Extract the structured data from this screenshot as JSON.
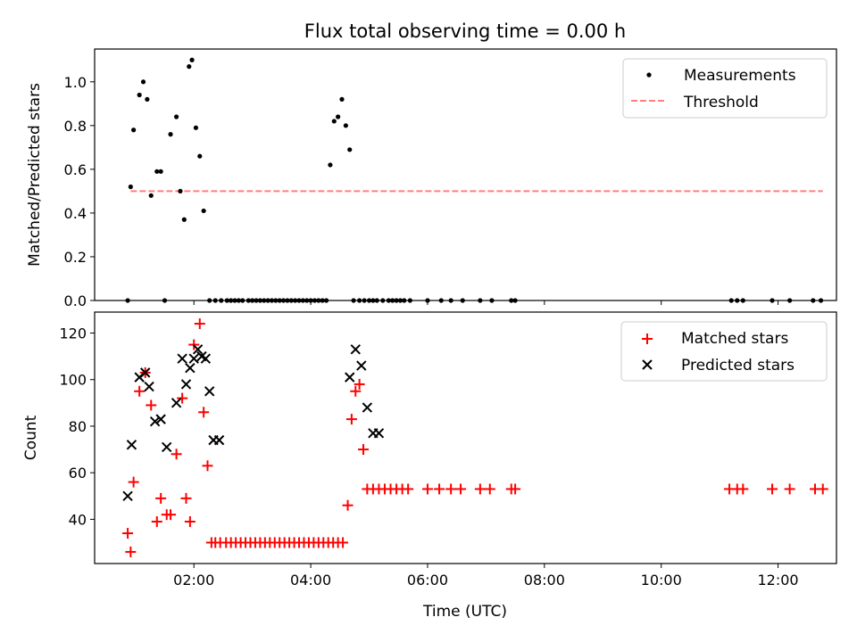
{
  "chart_data": [
    {
      "type": "scatter",
      "title": "Flux total observing time = 0.00 h",
      "xlabel": "",
      "ylabel": "Matched/Predicted stars",
      "xlim": [
        "00:18",
        "13:00"
      ],
      "ylim": [
        0,
        1.15
      ],
      "yticks": [
        "0.0",
        "0.2",
        "0.4",
        "0.6",
        "0.8",
        "1.0"
      ],
      "yticks_values": [
        0,
        0.2,
        0.4,
        0.6,
        0.8,
        1.0
      ],
      "grid": false,
      "legend_position": "top-right",
      "colors": {
        "measurements": "#000000",
        "threshold": "#ff7f7f"
      },
      "series": [
        {
          "name": "Measurements",
          "kind": "scatter",
          "x": [
            "00:52",
            "00:55",
            "00:58",
            "01:04",
            "01:08",
            "01:12",
            "01:16",
            "01:22",
            "01:26",
            "01:30",
            "01:36",
            "01:42",
            "01:46",
            "01:50",
            "01:55",
            "01:58",
            "02:02",
            "02:06",
            "02:10",
            "02:16",
            "02:22",
            "02:28",
            "02:34",
            "02:38",
            "02:42",
            "02:46",
            "02:50",
            "02:56",
            "03:00",
            "03:04",
            "03:08",
            "03:12",
            "03:16",
            "03:20",
            "03:24",
            "03:28",
            "03:32",
            "03:36",
            "03:40",
            "03:44",
            "03:48",
            "03:52",
            "03:56",
            "04:00",
            "04:04",
            "04:08",
            "04:12",
            "04:16",
            "04:20",
            "04:24",
            "04:28",
            "04:32",
            "04:36",
            "04:40",
            "04:44",
            "04:50",
            "04:55",
            "05:00",
            "05:04",
            "05:08",
            "05:14",
            "05:20",
            "05:24",
            "05:28",
            "05:32",
            "05:36",
            "05:42",
            "06:00",
            "06:14",
            "06:24",
            "06:36",
            "06:54",
            "07:06",
            "07:26",
            "07:30",
            "11:12",
            "11:18",
            "11:24",
            "11:54",
            "12:12",
            "12:36",
            "12:44"
          ],
          "y": [
            0,
            0.52,
            0.78,
            0.94,
            1.0,
            0.92,
            0.48,
            0.59,
            0.59,
            0,
            0.76,
            0.84,
            0.5,
            0.37,
            1.07,
            1.1,
            0.79,
            0.66,
            0.41,
            0,
            0,
            0,
            0,
            0,
            0,
            0,
            0,
            0,
            0,
            0,
            0,
            0,
            0,
            0,
            0,
            0,
            0,
            0,
            0,
            0,
            0,
            0,
            0,
            0,
            0,
            0,
            0,
            0,
            0.62,
            0.82,
            0.84,
            0.92,
            0.8,
            0.69,
            0,
            0,
            0,
            0,
            0,
            0,
            0,
            0,
            0,
            0,
            0,
            0,
            0,
            0,
            0,
            0,
            0,
            0,
            0,
            0,
            0,
            0,
            0,
            0,
            0,
            0,
            0,
            0
          ]
        },
        {
          "name": "Threshold",
          "kind": "dashed-line",
          "x": [
            "00:55",
            "12:46"
          ],
          "y": [
            0.5,
            0.5
          ]
        }
      ]
    },
    {
      "type": "scatter",
      "title": "",
      "xlabel": "Time (UTC)",
      "ylabel": "Count",
      "xlim": [
        "00:18",
        "13:00"
      ],
      "xticks": [
        "02:00",
        "04:00",
        "06:00",
        "08:00",
        "10:00",
        "12:00"
      ],
      "ylim": [
        21,
        129
      ],
      "yticks": [
        "40",
        "60",
        "80",
        "100",
        "120"
      ],
      "yticks_values": [
        40,
        60,
        80,
        100,
        120
      ],
      "grid": false,
      "legend_position": "top-right",
      "colors": {
        "matched": "#ff0000",
        "predicted": "#000000"
      },
      "series": [
        {
          "name": "Matched stars",
          "kind": "plus",
          "x": [
            "00:52",
            "00:55",
            "00:58",
            "01:04",
            "01:10",
            "01:16",
            "01:22",
            "01:26",
            "01:32",
            "01:36",
            "01:42",
            "01:48",
            "01:52",
            "01:56",
            "02:00",
            "02:06",
            "02:10",
            "02:14",
            "02:18",
            "02:22",
            "02:27",
            "02:33",
            "02:38",
            "02:43",
            "02:48",
            "02:53",
            "02:58",
            "03:03",
            "03:08",
            "03:13",
            "03:18",
            "03:23",
            "03:28",
            "03:33",
            "03:38",
            "03:43",
            "03:48",
            "03:53",
            "03:58",
            "04:03",
            "04:08",
            "04:13",
            "04:18",
            "04:23",
            "04:28",
            "04:33",
            "04:38",
            "04:42",
            "04:46",
            "04:50",
            "04:54",
            "04:58",
            "05:04",
            "05:10",
            "05:16",
            "05:22",
            "05:28",
            "05:34",
            "05:40",
            "06:00",
            "06:12",
            "06:24",
            "06:34",
            "06:54",
            "07:04",
            "07:26",
            "07:30",
            "11:10",
            "11:18",
            "11:24",
            "11:54",
            "12:12",
            "12:38",
            "12:46"
          ],
          "y": [
            34,
            26,
            56,
            95,
            103,
            89,
            39,
            49,
            42,
            42,
            68,
            92,
            49,
            39,
            115,
            124,
            86,
            63,
            30,
            30,
            30,
            30,
            30,
            30,
            30,
            30,
            30,
            30,
            30,
            30,
            30,
            30,
            30,
            30,
            30,
            30,
            30,
            30,
            30,
            30,
            30,
            30,
            30,
            30,
            30,
            30,
            46,
            83,
            95,
            98,
            70,
            53,
            53,
            53,
            53,
            53,
            53,
            53,
            53,
            53,
            53,
            53,
            53,
            53,
            53,
            53,
            53,
            53,
            53,
            53,
            53,
            53,
            53,
            53
          ]
        },
        {
          "name": "Predicted stars",
          "kind": "x",
          "x": [
            "00:52",
            "00:56",
            "01:04",
            "01:10",
            "01:14",
            "01:20",
            "01:26",
            "01:32",
            "01:42",
            "01:48",
            "01:52",
            "01:56",
            "02:00",
            "02:04",
            "02:08",
            "02:12",
            "02:16",
            "02:20",
            "02:26",
            "04:40",
            "04:46",
            "04:52",
            "04:58",
            "05:04",
            "05:10"
          ],
          "y": [
            50,
            72,
            101,
            103,
            97,
            82,
            83,
            71,
            90,
            109,
            98,
            105,
            109,
            113,
            110,
            109,
            95,
            74,
            74,
            101,
            113,
            106,
            88,
            77,
            77
          ]
        }
      ]
    }
  ]
}
